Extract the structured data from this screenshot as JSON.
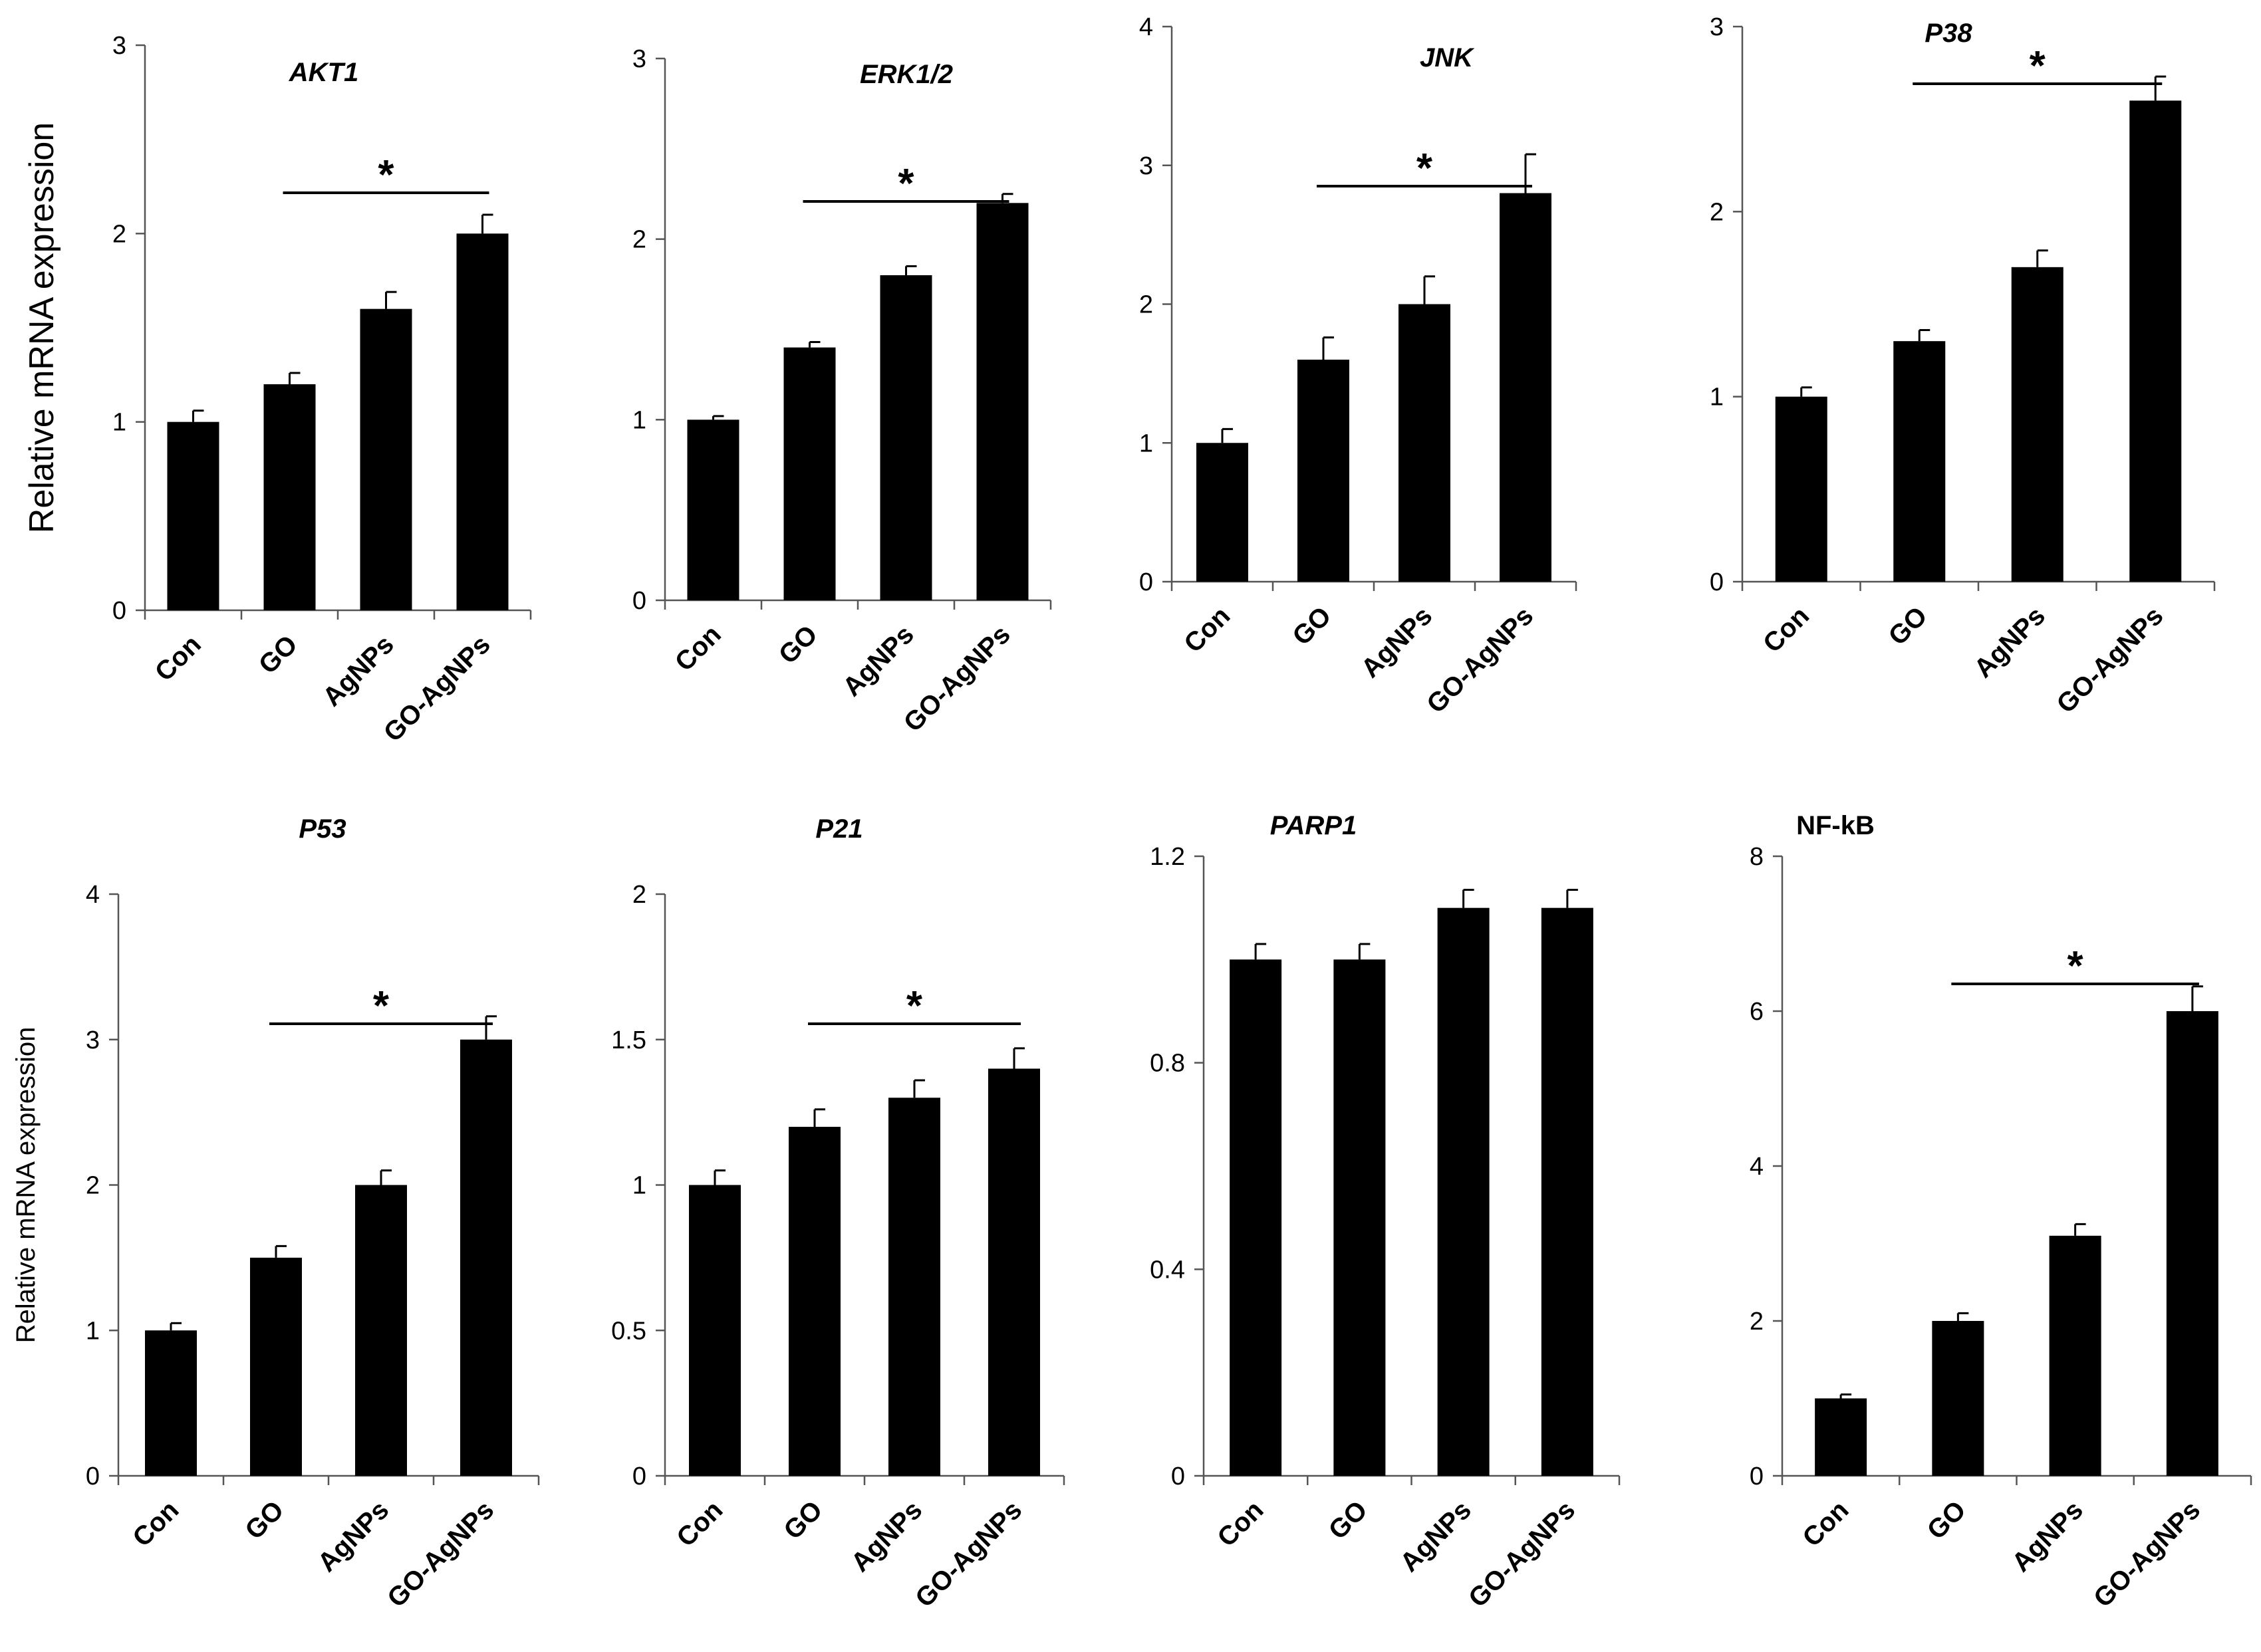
{
  "chart_data": [
    {
      "type": "bar",
      "title": "AKT1",
      "title_style": "italic",
      "ylabel": "Relative mRNA expression",
      "categories": [
        "Con",
        "GO",
        "AgNPs",
        "GO-AgNPs"
      ],
      "values": [
        1.0,
        1.2,
        1.6,
        2.0
      ],
      "errors": [
        0.06,
        0.06,
        0.09,
        0.1
      ],
      "ylim": [
        0,
        3
      ],
      "yticks": [
        "0",
        "1",
        "2",
        "3"
      ],
      "significance": {
        "from": 1,
        "to": 3,
        "mark": "*"
      }
    },
    {
      "type": "bar",
      "title": "ERK1/2",
      "title_style": "italic",
      "ylabel": "",
      "categories": [
        "Con",
        "GO",
        "AgNPs",
        "GO-AgNPs"
      ],
      "values": [
        1.0,
        1.4,
        1.8,
        2.2
      ],
      "errors": [
        0.02,
        0.03,
        0.05,
        0.05
      ],
      "ylim": [
        0,
        3
      ],
      "yticks": [
        "0",
        "1",
        "2",
        "3"
      ],
      "significance": {
        "from": 1,
        "to": 3,
        "mark": "*"
      }
    },
    {
      "type": "bar",
      "title": "JNK",
      "title_style": "italic",
      "ylabel": "",
      "categories": [
        "Con",
        "GO",
        "AgNPs",
        "GO-AgNPs"
      ],
      "values": [
        1.0,
        1.6,
        2.0,
        2.8
      ],
      "errors": [
        0.1,
        0.16,
        0.2,
        0.28
      ],
      "ylim": [
        0,
        4
      ],
      "yticks": [
        "0",
        "1",
        "2",
        "3",
        "4"
      ],
      "significance": {
        "from": 1,
        "to": 3,
        "mark": "*"
      }
    },
    {
      "type": "bar",
      "title": "P38",
      "title_style": "italic",
      "ylabel": "",
      "categories": [
        "Con",
        "GO",
        "AgNPs",
        "GO-AgNPs"
      ],
      "values": [
        1.0,
        1.3,
        1.7,
        2.6
      ],
      "errors": [
        0.05,
        0.06,
        0.09,
        0.13
      ],
      "ylim": [
        0,
        3
      ],
      "yticks": [
        "0",
        "1",
        "2",
        "3"
      ],
      "significance": {
        "from": 1,
        "to": 3,
        "mark": "*"
      }
    },
    {
      "type": "bar",
      "title": "P53",
      "title_style": "italic",
      "ylabel": "Relative mRNA expression",
      "categories": [
        "Con",
        "GO",
        "AgNPs",
        "GO-AgNPs"
      ],
      "values": [
        1.0,
        1.5,
        2.0,
        3.0
      ],
      "errors": [
        0.05,
        0.08,
        0.1,
        0.16
      ],
      "ylim": [
        0,
        4
      ],
      "yticks": [
        "0",
        "1",
        "2",
        "3",
        "4"
      ],
      "significance": {
        "from": 1,
        "to": 3,
        "mark": "*"
      }
    },
    {
      "type": "bar",
      "title": "P21",
      "title_style": "italic",
      "ylabel": "",
      "categories": [
        "Con",
        "GO",
        "AgNPs",
        "GO-AgNPs"
      ],
      "values": [
        1.0,
        1.2,
        1.3,
        1.4
      ],
      "errors": [
        0.05,
        0.06,
        0.06,
        0.07
      ],
      "ylim": [
        0,
        2
      ],
      "yticks": [
        "0",
        "0.5",
        "1",
        "1.5",
        "2"
      ],
      "significance": {
        "from": 1,
        "to": 3,
        "mark": "*"
      }
    },
    {
      "type": "bar",
      "title": "PARP1",
      "title_style": "italic",
      "ylabel": "",
      "categories": [
        "Con",
        "GO",
        "AgNPs",
        "GO-AgNPs"
      ],
      "values": [
        1.0,
        1.0,
        1.1,
        1.1
      ],
      "errors": [
        0.03,
        0.03,
        0.035,
        0.035
      ],
      "ylim": [
        0,
        1.2
      ],
      "yticks": [
        "0",
        "0.4",
        "0.8",
        "1.2"
      ],
      "significance": null
    },
    {
      "type": "bar",
      "title": "NF-kB",
      "title_style": "normal",
      "ylabel": "",
      "categories": [
        "Con",
        "GO",
        "AgNPs",
        "GO-AgNPs"
      ],
      "values": [
        1.0,
        2.0,
        3.1,
        6.0
      ],
      "errors": [
        0.05,
        0.1,
        0.15,
        0.32
      ],
      "ylim": [
        0,
        8
      ],
      "yticks": [
        "0",
        "2",
        "4",
        "6",
        "8"
      ],
      "significance": {
        "from": 1,
        "to": 3,
        "mark": "*"
      }
    }
  ]
}
